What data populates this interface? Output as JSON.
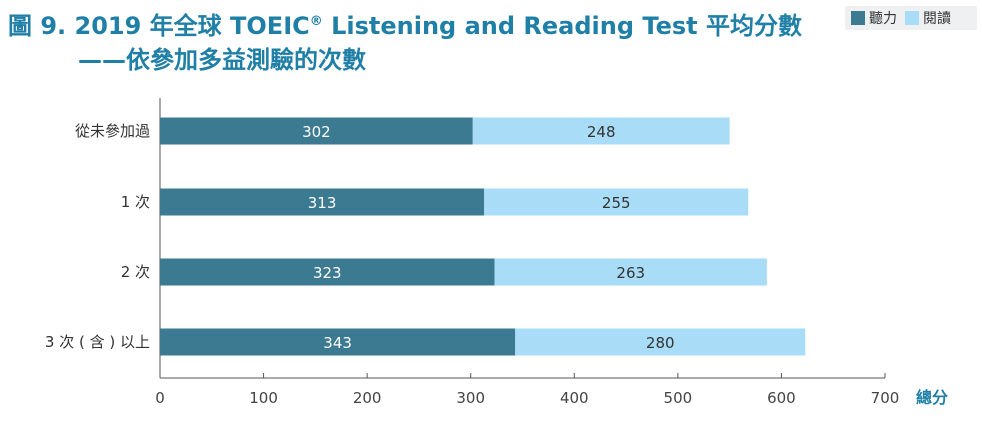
{
  "header": {
    "title_main": "圖 9. 2019 年全球 TOEIC",
    "title_sup": "®",
    "title_rest": " Listening and Reading Test 平均分數",
    "subtitle": "——依參加多益測驗的次數"
  },
  "chart_data": {
    "type": "bar",
    "orientation": "horizontal",
    "stacked": true,
    "categories": [
      "從未參加過",
      "1 次",
      "2 次",
      "3 次 ( 含 ) 以上"
    ],
    "series": [
      {
        "name": "聽力",
        "values": [
          302,
          313,
          323,
          343
        ],
        "color": "#3b7a91",
        "label_color": "#ffffff"
      },
      {
        "name": "閱讀",
        "values": [
          248,
          255,
          263,
          280
        ],
        "color": "#a8dcf7",
        "label_color": "#333333"
      }
    ],
    "xlim": [
      0,
      700
    ],
    "xticks": [
      0,
      100,
      200,
      300,
      400,
      500,
      600,
      700
    ],
    "xlabel": "總分",
    "legend_position": "top-right",
    "grid": false
  }
}
